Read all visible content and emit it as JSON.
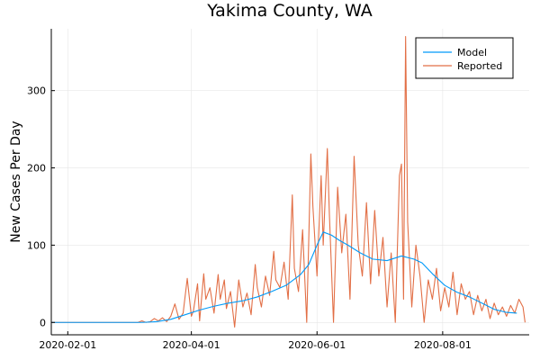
{
  "chart_data": {
    "type": "line",
    "title": "Yakima County, WA",
    "xlabel": "",
    "ylabel": "New Cases Per Day",
    "x_axis": {
      "type": "date",
      "range": [
        "2020-01-24",
        "2020-09-12"
      ],
      "ticks": [
        "2020-02-01",
        "2020-04-01",
        "2020-06-01",
        "2020-08-01"
      ]
    },
    "y_axis": {
      "range": [
        -16,
        380
      ],
      "ticks": [
        0,
        100,
        200,
        300
      ]
    },
    "grid": true,
    "legend": {
      "placement": "top-right",
      "entries": [
        "Model",
        "Reported"
      ]
    },
    "series": [
      {
        "name": "Model",
        "color": "#009af9",
        "points": [
          [
            "2020-01-24",
            0
          ],
          [
            "2020-03-08",
            0
          ],
          [
            "2020-03-15",
            1
          ],
          [
            "2020-03-22",
            4
          ],
          [
            "2020-03-29",
            10
          ],
          [
            "2020-04-05",
            16
          ],
          [
            "2020-04-12",
            21
          ],
          [
            "2020-04-19",
            25
          ],
          [
            "2020-04-26",
            28
          ],
          [
            "2020-05-03",
            33
          ],
          [
            "2020-05-10",
            40
          ],
          [
            "2020-05-17",
            48
          ],
          [
            "2020-05-24",
            62
          ],
          [
            "2020-05-28",
            75
          ],
          [
            "2020-06-01",
            100
          ],
          [
            "2020-06-04",
            117
          ],
          [
            "2020-06-08",
            113
          ],
          [
            "2020-06-12",
            106
          ],
          [
            "2020-06-16",
            100
          ],
          [
            "2020-06-22",
            90
          ],
          [
            "2020-06-28",
            82
          ],
          [
            "2020-07-05",
            80
          ],
          [
            "2020-07-12",
            86
          ],
          [
            "2020-07-18",
            82
          ],
          [
            "2020-07-22",
            77
          ],
          [
            "2020-07-27",
            63
          ],
          [
            "2020-08-02",
            48
          ],
          [
            "2020-08-08",
            39
          ],
          [
            "2020-08-14",
            33
          ],
          [
            "2020-08-20",
            25
          ],
          [
            "2020-08-26",
            17
          ],
          [
            "2020-09-01",
            13
          ],
          [
            "2020-09-06",
            12
          ]
        ]
      },
      {
        "name": "Reported",
        "color": "#e26f46",
        "points": [
          [
            "2020-01-24",
            0
          ],
          [
            "2020-03-06",
            0
          ],
          [
            "2020-03-08",
            2
          ],
          [
            "2020-03-10",
            0
          ],
          [
            "2020-03-12",
            1
          ],
          [
            "2020-03-14",
            5
          ],
          [
            "2020-03-16",
            2
          ],
          [
            "2020-03-18",
            6
          ],
          [
            "2020-03-20",
            1
          ],
          [
            "2020-03-22",
            8
          ],
          [
            "2020-03-24",
            24
          ],
          [
            "2020-03-26",
            4
          ],
          [
            "2020-03-28",
            12
          ],
          [
            "2020-03-30",
            57
          ],
          [
            "2020-04-01",
            8
          ],
          [
            "2020-04-02",
            15
          ],
          [
            "2020-04-04",
            50
          ],
          [
            "2020-04-05",
            2
          ],
          [
            "2020-04-07",
            63
          ],
          [
            "2020-04-08",
            30
          ],
          [
            "2020-04-10",
            45
          ],
          [
            "2020-04-12",
            12
          ],
          [
            "2020-04-14",
            62
          ],
          [
            "2020-04-15",
            30
          ],
          [
            "2020-04-17",
            55
          ],
          [
            "2020-04-18",
            18
          ],
          [
            "2020-04-20",
            40
          ],
          [
            "2020-04-22",
            -6
          ],
          [
            "2020-04-24",
            55
          ],
          [
            "2020-04-26",
            20
          ],
          [
            "2020-04-28",
            38
          ],
          [
            "2020-04-30",
            10
          ],
          [
            "2020-05-02",
            75
          ],
          [
            "2020-05-03",
            45
          ],
          [
            "2020-05-05",
            20
          ],
          [
            "2020-05-07",
            60
          ],
          [
            "2020-05-09",
            35
          ],
          [
            "2020-05-11",
            92
          ],
          [
            "2020-05-12",
            55
          ],
          [
            "2020-05-14",
            45
          ],
          [
            "2020-05-16",
            78
          ],
          [
            "2020-05-18",
            30
          ],
          [
            "2020-05-20",
            165
          ],
          [
            "2020-05-21",
            70
          ],
          [
            "2020-05-23",
            40
          ],
          [
            "2020-05-25",
            120
          ],
          [
            "2020-05-27",
            0
          ],
          [
            "2020-05-29",
            218
          ],
          [
            "2020-05-30",
            150
          ],
          [
            "2020-06-01",
            60
          ],
          [
            "2020-06-03",
            190
          ],
          [
            "2020-06-04",
            100
          ],
          [
            "2020-06-06",
            225
          ],
          [
            "2020-06-07",
            140
          ],
          [
            "2020-06-09",
            0
          ],
          [
            "2020-06-11",
            175
          ],
          [
            "2020-06-13",
            90
          ],
          [
            "2020-06-15",
            140
          ],
          [
            "2020-06-17",
            30
          ],
          [
            "2020-06-19",
            215
          ],
          [
            "2020-06-21",
            100
          ],
          [
            "2020-06-23",
            60
          ],
          [
            "2020-06-25",
            155
          ],
          [
            "2020-06-27",
            50
          ],
          [
            "2020-06-29",
            145
          ],
          [
            "2020-07-01",
            60
          ],
          [
            "2020-07-03",
            110
          ],
          [
            "2020-07-05",
            20
          ],
          [
            "2020-07-07",
            90
          ],
          [
            "2020-07-09",
            0
          ],
          [
            "2020-07-11",
            190
          ],
          [
            "2020-07-12",
            205
          ],
          [
            "2020-07-13",
            30
          ],
          [
            "2020-07-14",
            370
          ],
          [
            "2020-07-15",
            130
          ],
          [
            "2020-07-17",
            20
          ],
          [
            "2020-07-19",
            100
          ],
          [
            "2020-07-21",
            60
          ],
          [
            "2020-07-23",
            0
          ],
          [
            "2020-07-25",
            55
          ],
          [
            "2020-07-27",
            30
          ],
          [
            "2020-07-29",
            70
          ],
          [
            "2020-07-31",
            15
          ],
          [
            "2020-08-02",
            45
          ],
          [
            "2020-08-04",
            20
          ],
          [
            "2020-08-06",
            65
          ],
          [
            "2020-08-08",
            10
          ],
          [
            "2020-08-10",
            50
          ],
          [
            "2020-08-12",
            30
          ],
          [
            "2020-08-14",
            40
          ],
          [
            "2020-08-16",
            10
          ],
          [
            "2020-08-18",
            35
          ],
          [
            "2020-08-20",
            15
          ],
          [
            "2020-08-22",
            30
          ],
          [
            "2020-08-24",
            5
          ],
          [
            "2020-08-26",
            25
          ],
          [
            "2020-08-28",
            10
          ],
          [
            "2020-08-30",
            20
          ],
          [
            "2020-09-01",
            8
          ],
          [
            "2020-09-03",
            22
          ],
          [
            "2020-09-05",
            12
          ],
          [
            "2020-09-07",
            30
          ],
          [
            "2020-09-09",
            20
          ],
          [
            "2020-09-10",
            0
          ]
        ]
      }
    ]
  }
}
